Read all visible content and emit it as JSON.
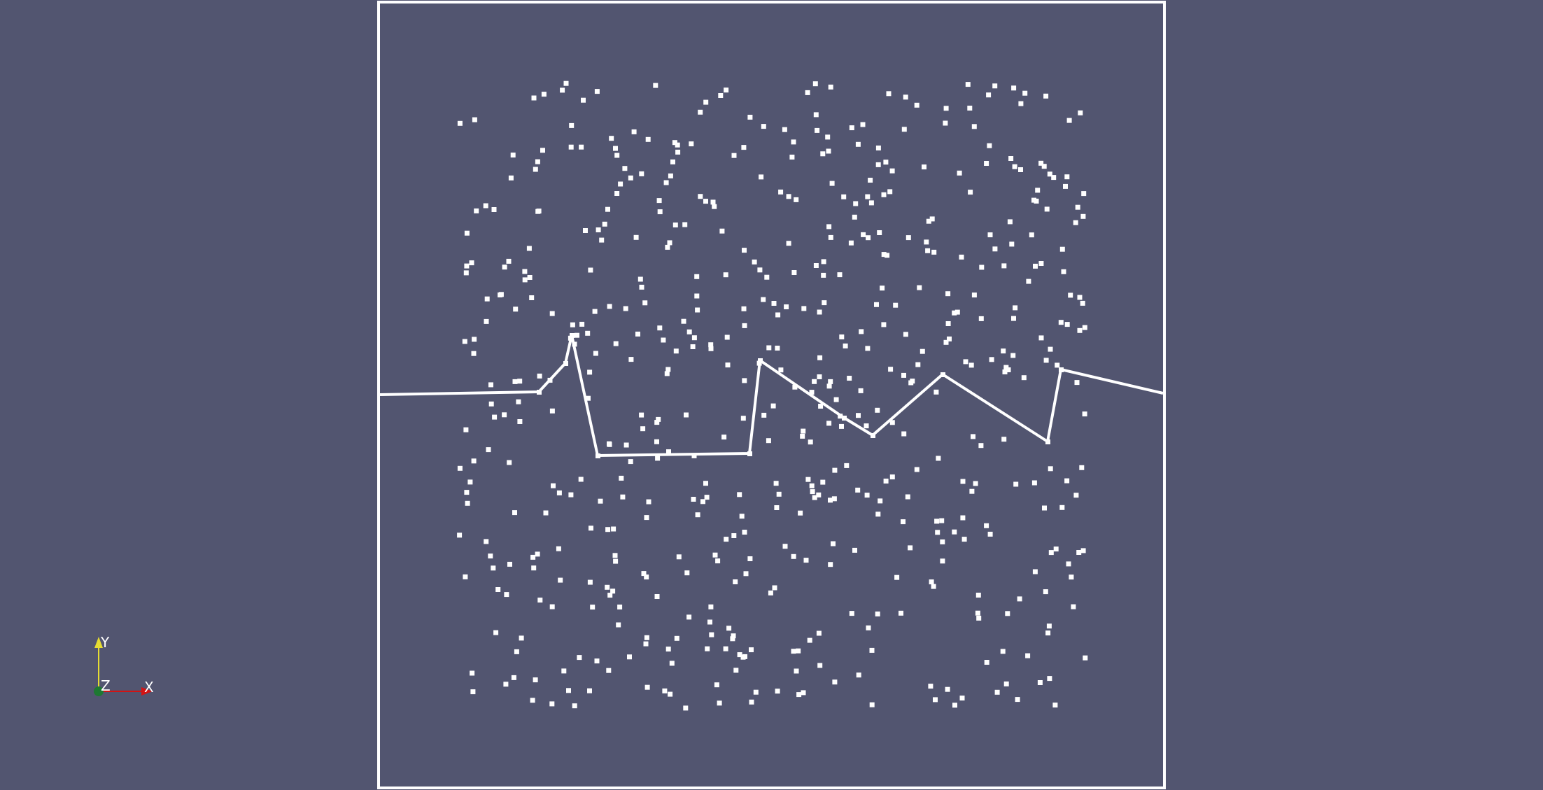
{
  "viewport": {
    "background": "#525570",
    "foreground": "#ffffff"
  },
  "orientation_axes": {
    "labels": {
      "x": "X",
      "y": "Y",
      "z": "Z"
    },
    "colors": {
      "x": "#d21414",
      "y": "#e6dc32",
      "z": "#1e7832"
    }
  }
}
